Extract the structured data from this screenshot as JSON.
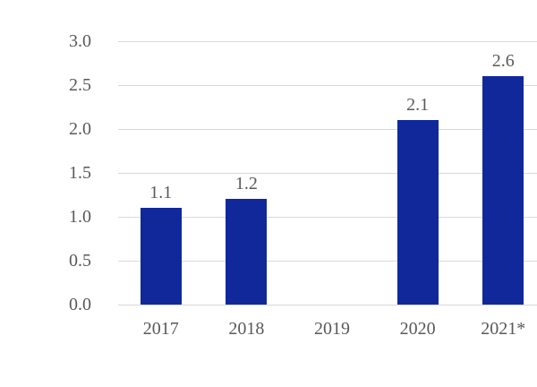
{
  "chart_data": {
    "type": "bar",
    "title": "",
    "xlabel": "",
    "ylabel": "",
    "categories": [
      "2017",
      "2018",
      "2019",
      "2020",
      "2021*"
    ],
    "values": [
      1.1,
      1.2,
      null,
      2.1,
      2.6
    ],
    "data_labels": [
      "1.1",
      "1.2",
      "",
      "2.1",
      "2.6"
    ],
    "yticks": [
      "3.0",
      "2.5",
      "2.0",
      "1.5",
      "1.0",
      "0.5",
      "0.0"
    ],
    "ylim": [
      0,
      3
    ],
    "grid": true,
    "legend": "none",
    "colors": {
      "bar": "#11289b",
      "gridline": "#d9d9d9",
      "axis_line": "#d9d9d9",
      "tick_text": "#595959",
      "data_label_text": "#595959",
      "background": "#ffffff"
    }
  }
}
